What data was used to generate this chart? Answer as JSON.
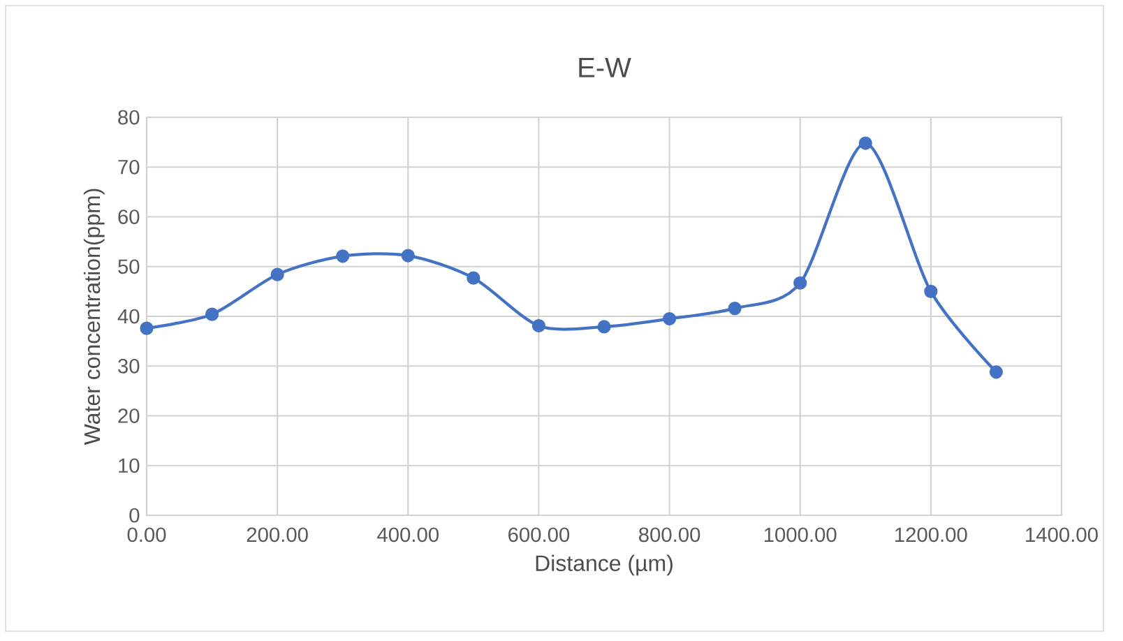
{
  "chart_data": {
    "type": "line",
    "title": "E-W",
    "xlabel": "Distance (µm)",
    "ylabel": "Water concentration(ppm)",
    "x": [
      0,
      100,
      200,
      300,
      400,
      500,
      600,
      700,
      800,
      900,
      1000,
      1100,
      1200,
      1300
    ],
    "series": [
      {
        "color": "#4472c4",
        "values": [
          37.6,
          40.4,
          48.4,
          52.1,
          52.2,
          47.7,
          38.1,
          37.9,
          39.5,
          41.6,
          46.7,
          74.8,
          45.0,
          28.8
        ]
      }
    ],
    "xlim": [
      0,
      1400
    ],
    "xticks": [
      {
        "value": 0,
        "label": "0.00"
      },
      {
        "value": 200,
        "label": "200.00"
      },
      {
        "value": 400,
        "label": "400.00"
      },
      {
        "value": 600,
        "label": "600.00"
      },
      {
        "value": 800,
        "label": "800.00"
      },
      {
        "value": 1000,
        "label": "1000.00"
      },
      {
        "value": 1200,
        "label": "1200.00"
      },
      {
        "value": 1400,
        "label": "1400.00"
      }
    ],
    "ylim": [
      0,
      80
    ],
    "yticks": [
      0,
      10,
      20,
      30,
      40,
      50,
      60,
      70,
      80
    ],
    "grid": true,
    "marker": "circle",
    "line_style": "solid"
  }
}
